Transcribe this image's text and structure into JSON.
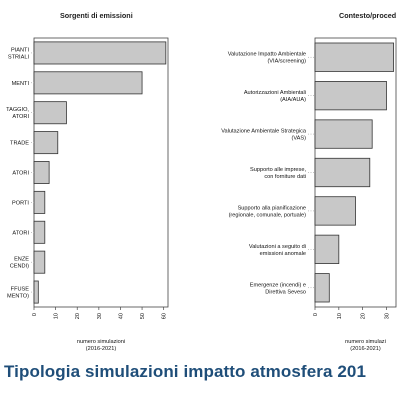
{
  "caption": "Tipologia simulazioni impatto atmosfera 201",
  "chart_data": [
    {
      "type": "bar",
      "orientation": "horizontal",
      "title": "Sorgenti di emissioni",
      "categories": [
        [
          "PIANTI",
          "STRIALI"
        ],
        [
          "MENTI"
        ],
        [
          "TAGGIO,",
          "ATORI"
        ],
        [
          "TRADE"
        ],
        [
          "ATORI"
        ],
        [
          "PORTI"
        ],
        [
          "ATORI"
        ],
        [
          "ENZE",
          "CENDI)"
        ],
        [
          "FFUSE",
          "MENTO)"
        ]
      ],
      "values": [
        61,
        50,
        15,
        11,
        7,
        5,
        5,
        5,
        2
      ],
      "xlim": [
        0,
        62
      ],
      "xticks": [
        0,
        10,
        20,
        30,
        40,
        50,
        60
      ],
      "xlabel": [
        "numero simulazioni",
        "(2016-2021)"
      ],
      "bar_color": "#c8c8c8"
    },
    {
      "type": "bar",
      "orientation": "horizontal",
      "title": "Contesto/proced",
      "categories": [
        [
          "Valutazione Impatto Ambientale",
          "(VIA/screening)"
        ],
        [
          "Autorizzazioni Ambientali",
          "(AIA/AUA)"
        ],
        [
          "Valutazione Ambientale Strategica",
          "(VAS)"
        ],
        [
          "Supporto alle imprese,",
          "con forniture dati"
        ],
        [
          "Supporto alla pianificazione",
          "(regionale, comunale, portuale)"
        ],
        [
          "Valutazioni a seguito di",
          "emissioni anomale"
        ],
        [
          "Emergenze (incendi) e",
          "Direttiva Seveso"
        ]
      ],
      "values": [
        33,
        30,
        24,
        23,
        17,
        10,
        6
      ],
      "xlim": [
        0,
        34
      ],
      "xticks": [
        0,
        10,
        20,
        30
      ],
      "xlabel": [
        "numero simulazi",
        "(2016-2021)"
      ],
      "bar_color": "#c8c8c8"
    }
  ]
}
